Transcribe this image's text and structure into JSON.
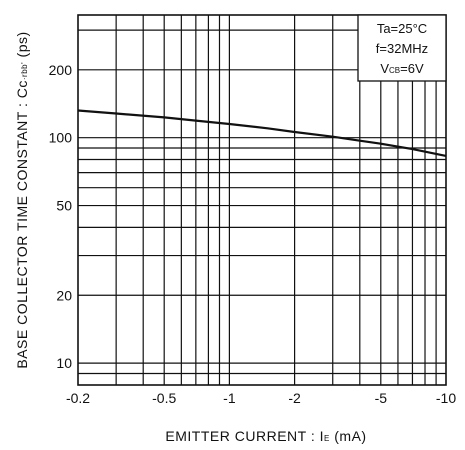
{
  "chart_data": {
    "type": "line",
    "xlabel": "EMITTER CURRENT : IE (mA)",
    "xlabel_main": "EMITTER CURRENT : ",
    "xlabel_symbol": "I",
    "xlabel_symbol_sub": "E",
    "xlabel_unit": " (mA)",
    "ylabel": "BASE COLLECTOR TIME CONSTANT : Cc·rbb' (ps)",
    "ylabel_main": "BASE COLLECTOR TIME CONSTANT : Cc",
    "ylabel_mid": "·rbb'",
    "ylabel_unit": " (ps)",
    "x_scale": "log",
    "y_scale": "log",
    "xlim": [
      -0.2,
      -10
    ],
    "ylim": [
      8,
      350
    ],
    "grid": true,
    "x_ticks": [
      -0.2,
      -0.5,
      -1,
      -2,
      -5,
      -10
    ],
    "x_tick_labels": [
      "-0.2",
      "-0.5",
      "-1",
      "-2",
      "-5",
      "-10"
    ],
    "y_ticks": [
      10,
      20,
      50,
      100,
      200
    ],
    "y_tick_labels": [
      "10",
      "20",
      "50",
      "100",
      "200"
    ],
    "conditions": {
      "ta": "Ta=25°C",
      "freq": "f=32MHz",
      "vcb_prefix": "V",
      "vcb_sub": "CB",
      "vcb_value": "=6V"
    },
    "series": [
      {
        "x": [
          -0.2,
          -0.3,
          -0.5,
          -0.7,
          -1,
          -1.5,
          -2,
          -3,
          -4,
          -5,
          -7,
          -10
        ],
        "y": [
          132,
          128,
          123,
          119,
          115,
          110,
          106,
          101,
          97,
          94,
          89,
          83
        ]
      }
    ]
  }
}
